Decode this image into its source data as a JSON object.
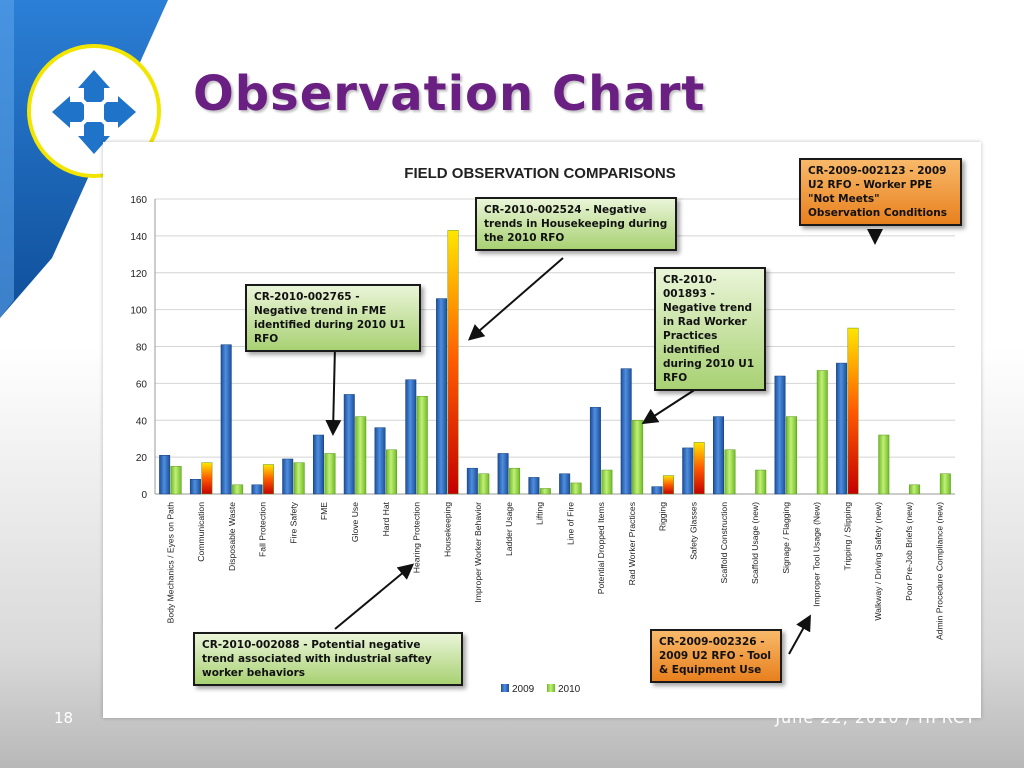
{
  "slide": {
    "title": "Observation Chart",
    "page_number": "18",
    "footer_date": "June 22, 2010 / HPRCT",
    "logo_icon": "plus-arrows-icon",
    "accent_color": "#6a1f82",
    "brand_blue": "#1f73c8"
  },
  "chart_data": {
    "type": "bar",
    "title": "FIELD OBSERVATION COMPARISONS",
    "xlabel": "",
    "ylabel": "",
    "ylim": [
      0,
      160
    ],
    "yticks": [
      0,
      20,
      40,
      60,
      80,
      100,
      120,
      140,
      160
    ],
    "grid": true,
    "legend_position": "bottom",
    "categories": [
      "Body Mechanics / Eyes on Path",
      "Communication",
      "Disposable Waste",
      "Fall Protection",
      "Fire Safety",
      "FME",
      "Glove Use",
      "Hard Hat",
      "Hearing Protection",
      "Housekeeping",
      "Improper Worker Behavior",
      "Ladder Usage",
      "Lifting",
      "Line of Fire",
      "Potential Dropped Items",
      "Rad Worker Practices",
      "Rigging",
      "Safety Glasses",
      "Scaffold Construction",
      "Scaffold Usage (new)",
      "Signage / Flagging",
      "Improper Tool Usage (New)",
      "Tripping / Slipping",
      "Walkway / Driving Safety (new)",
      "Poor Pre-Job Briefs (new)",
      "Admin Procedure Compliance (new)"
    ],
    "series": [
      {
        "name": "2009",
        "color": "#2a62b0",
        "values": [
          21,
          8,
          81,
          5,
          19,
          32,
          54,
          36,
          62,
          106,
          14,
          22,
          9,
          11,
          47,
          68,
          4,
          25,
          42,
          0,
          64,
          0,
          71,
          0,
          0,
          0
        ]
      },
      {
        "name": "2010",
        "color": "#8fd23a",
        "values": [
          15,
          17,
          5,
          16,
          17,
          22,
          42,
          24,
          53,
          143,
          11,
          14,
          3,
          6,
          13,
          40,
          10,
          28,
          24,
          13,
          42,
          67,
          90,
          32,
          5,
          11
        ]
      }
    ],
    "highlighted_2010_categories": [
      "Communication",
      "Fall Protection",
      "Housekeeping",
      "Rigging",
      "Safety Glasses",
      "Tripping / Slipping"
    ],
    "annotations": [
      {
        "id": "cr-2765",
        "style": "green",
        "text": "CR-2010-002765 - Negative trend in FME identified during 2010 U1 RFO",
        "category": "FME"
      },
      {
        "id": "cr-2524",
        "style": "green",
        "text": "CR-2010-002524 - Negative trends in Housekeeping during the 2010 RFO",
        "category": "Housekeeping"
      },
      {
        "id": "cr-1893",
        "style": "green",
        "text": "CR-2010-001893 - Negative trend in Rad Worker Practices identified during 2010 U1 RFO",
        "category": "Rad Worker Practices"
      },
      {
        "id": "cr-2123",
        "style": "orange",
        "text": "CR-2009-002123 - 2009 U2 RFO - Worker PPE \"Not Meets\" Observation Conditions",
        "category": "Tripping / Slipping"
      },
      {
        "id": "cr-2088",
        "style": "green",
        "text": "CR-2010-002088 - Potential negative trend associated with industrial saftey worker behaviors",
        "category": "Hearing Protection"
      },
      {
        "id": "cr-2326",
        "style": "orange",
        "text": "CR-2009-002326 - 2009 U2 RFO - Tool & Equipment Use",
        "category": "Improper Tool Usage (New)"
      }
    ]
  }
}
